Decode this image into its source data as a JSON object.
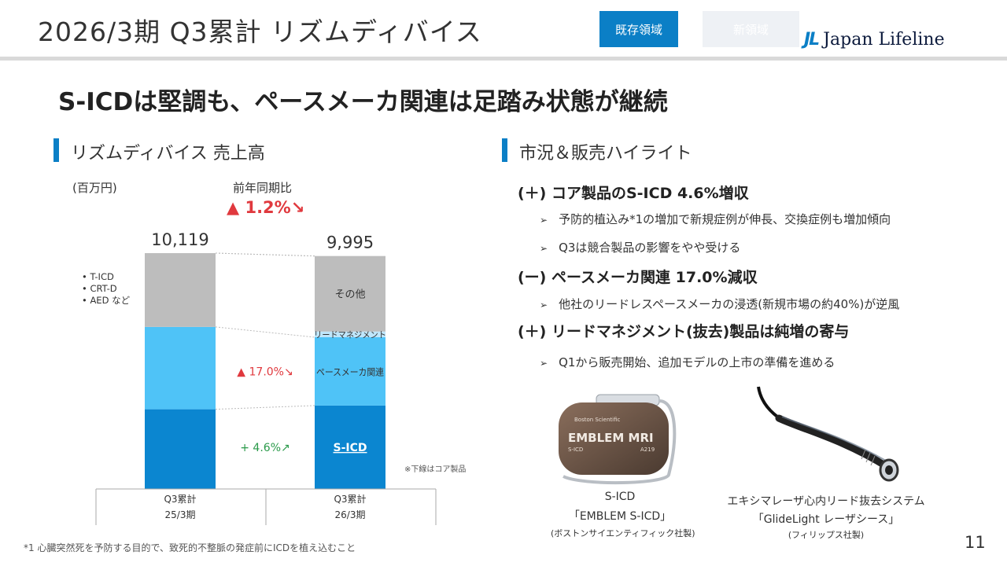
{
  "header": {
    "title": "2026/3期  Q3累計 リズムディバイス",
    "tab_existing": "既存領域",
    "tab_new": "新領域",
    "logo_mark": "JL",
    "logo_text": "Japan Lifeline"
  },
  "headline": "S-ICDは堅調も、ペースメーカ関連は足踏み状態が継続",
  "left_section": {
    "title": "リズムディバイス 売上高",
    "unit": "(百万円)",
    "yoy_label": "前年同期比",
    "yoy_value": "▲ 1.2%↘",
    "legend_notes": [
      "• T-ICD",
      "• CRT-D",
      "• AED  など"
    ],
    "core_note": "※下線はコア製品"
  },
  "chart_data": {
    "type": "bar",
    "stacked": true,
    "categories": [
      [
        "Q3累計",
        "25/3期"
      ],
      [
        "Q3累計",
        "26/3期"
      ]
    ],
    "totals": [
      "10,119",
      "9,995"
    ],
    "total_values": [
      10119,
      9995
    ],
    "series": [
      {
        "name": "S-ICD",
        "values": [
          3420,
          3578
        ],
        "color": "#0b86d0",
        "label_underlined": true
      },
      {
        "name": "ペースメーカ関連",
        "values": [
          3533,
          2932
        ],
        "color": "#4fc3f7"
      },
      {
        "name": "リードマネジメント",
        "values": [
          0,
          245
        ],
        "color": "#bfe6fb"
      },
      {
        "name": "その他",
        "values": [
          3166,
          3240
        ],
        "color": "#bdbdbd"
      }
    ],
    "change_labels": [
      {
        "series": "S-ICD",
        "text": "+ 4.6%↗",
        "color": "#2a9a4a"
      },
      {
        "series": "ペースメーカ関連",
        "text": "▲ 17.0%↘",
        "color": "#e0393e"
      }
    ]
  },
  "right_section": {
    "title": "市況＆販売ハイライト",
    "highlights": [
      {
        "heading": "(＋) コア製品のS-ICD 4.6%増収",
        "bullets": [
          "予防的植込み*1の増加で新規症例が伸長、交換症例も増加傾向",
          "Q3は競合製品の影響をやや受ける"
        ]
      },
      {
        "heading": "(ー) ペースメーカ関連 17.0%減収",
        "bullets": [
          "他社のリードレスペースメーカの浸透(新規市場の約40%)が逆風"
        ]
      },
      {
        "heading": "(＋) リードマネジメント(抜去)製品は純増の寄与",
        "bullets": [
          "Q1から販売開始、追加モデルの上市の準備を進める"
        ]
      }
    ],
    "bullet_marker": "➢"
  },
  "products": [
    {
      "name": "S-ICD",
      "model": "「EMBLEM S-ICD」",
      "maker": "(ボストンサイエンティフィック社製)",
      "device_brand": "Boston Scientific",
      "device_label": "EMBLEM MRI",
      "device_sub": "S-ICD",
      "device_model": "A219"
    },
    {
      "name": "エキシマレーザ心内リード抜去システム",
      "model": "「GlideLight レーザシース」",
      "maker": "(フィリップス社製)"
    }
  ],
  "footnote": "*1 心臓突然死を予防する目的で、致死的不整脈の発症前にICDを植え込むこと",
  "page_number": "11"
}
